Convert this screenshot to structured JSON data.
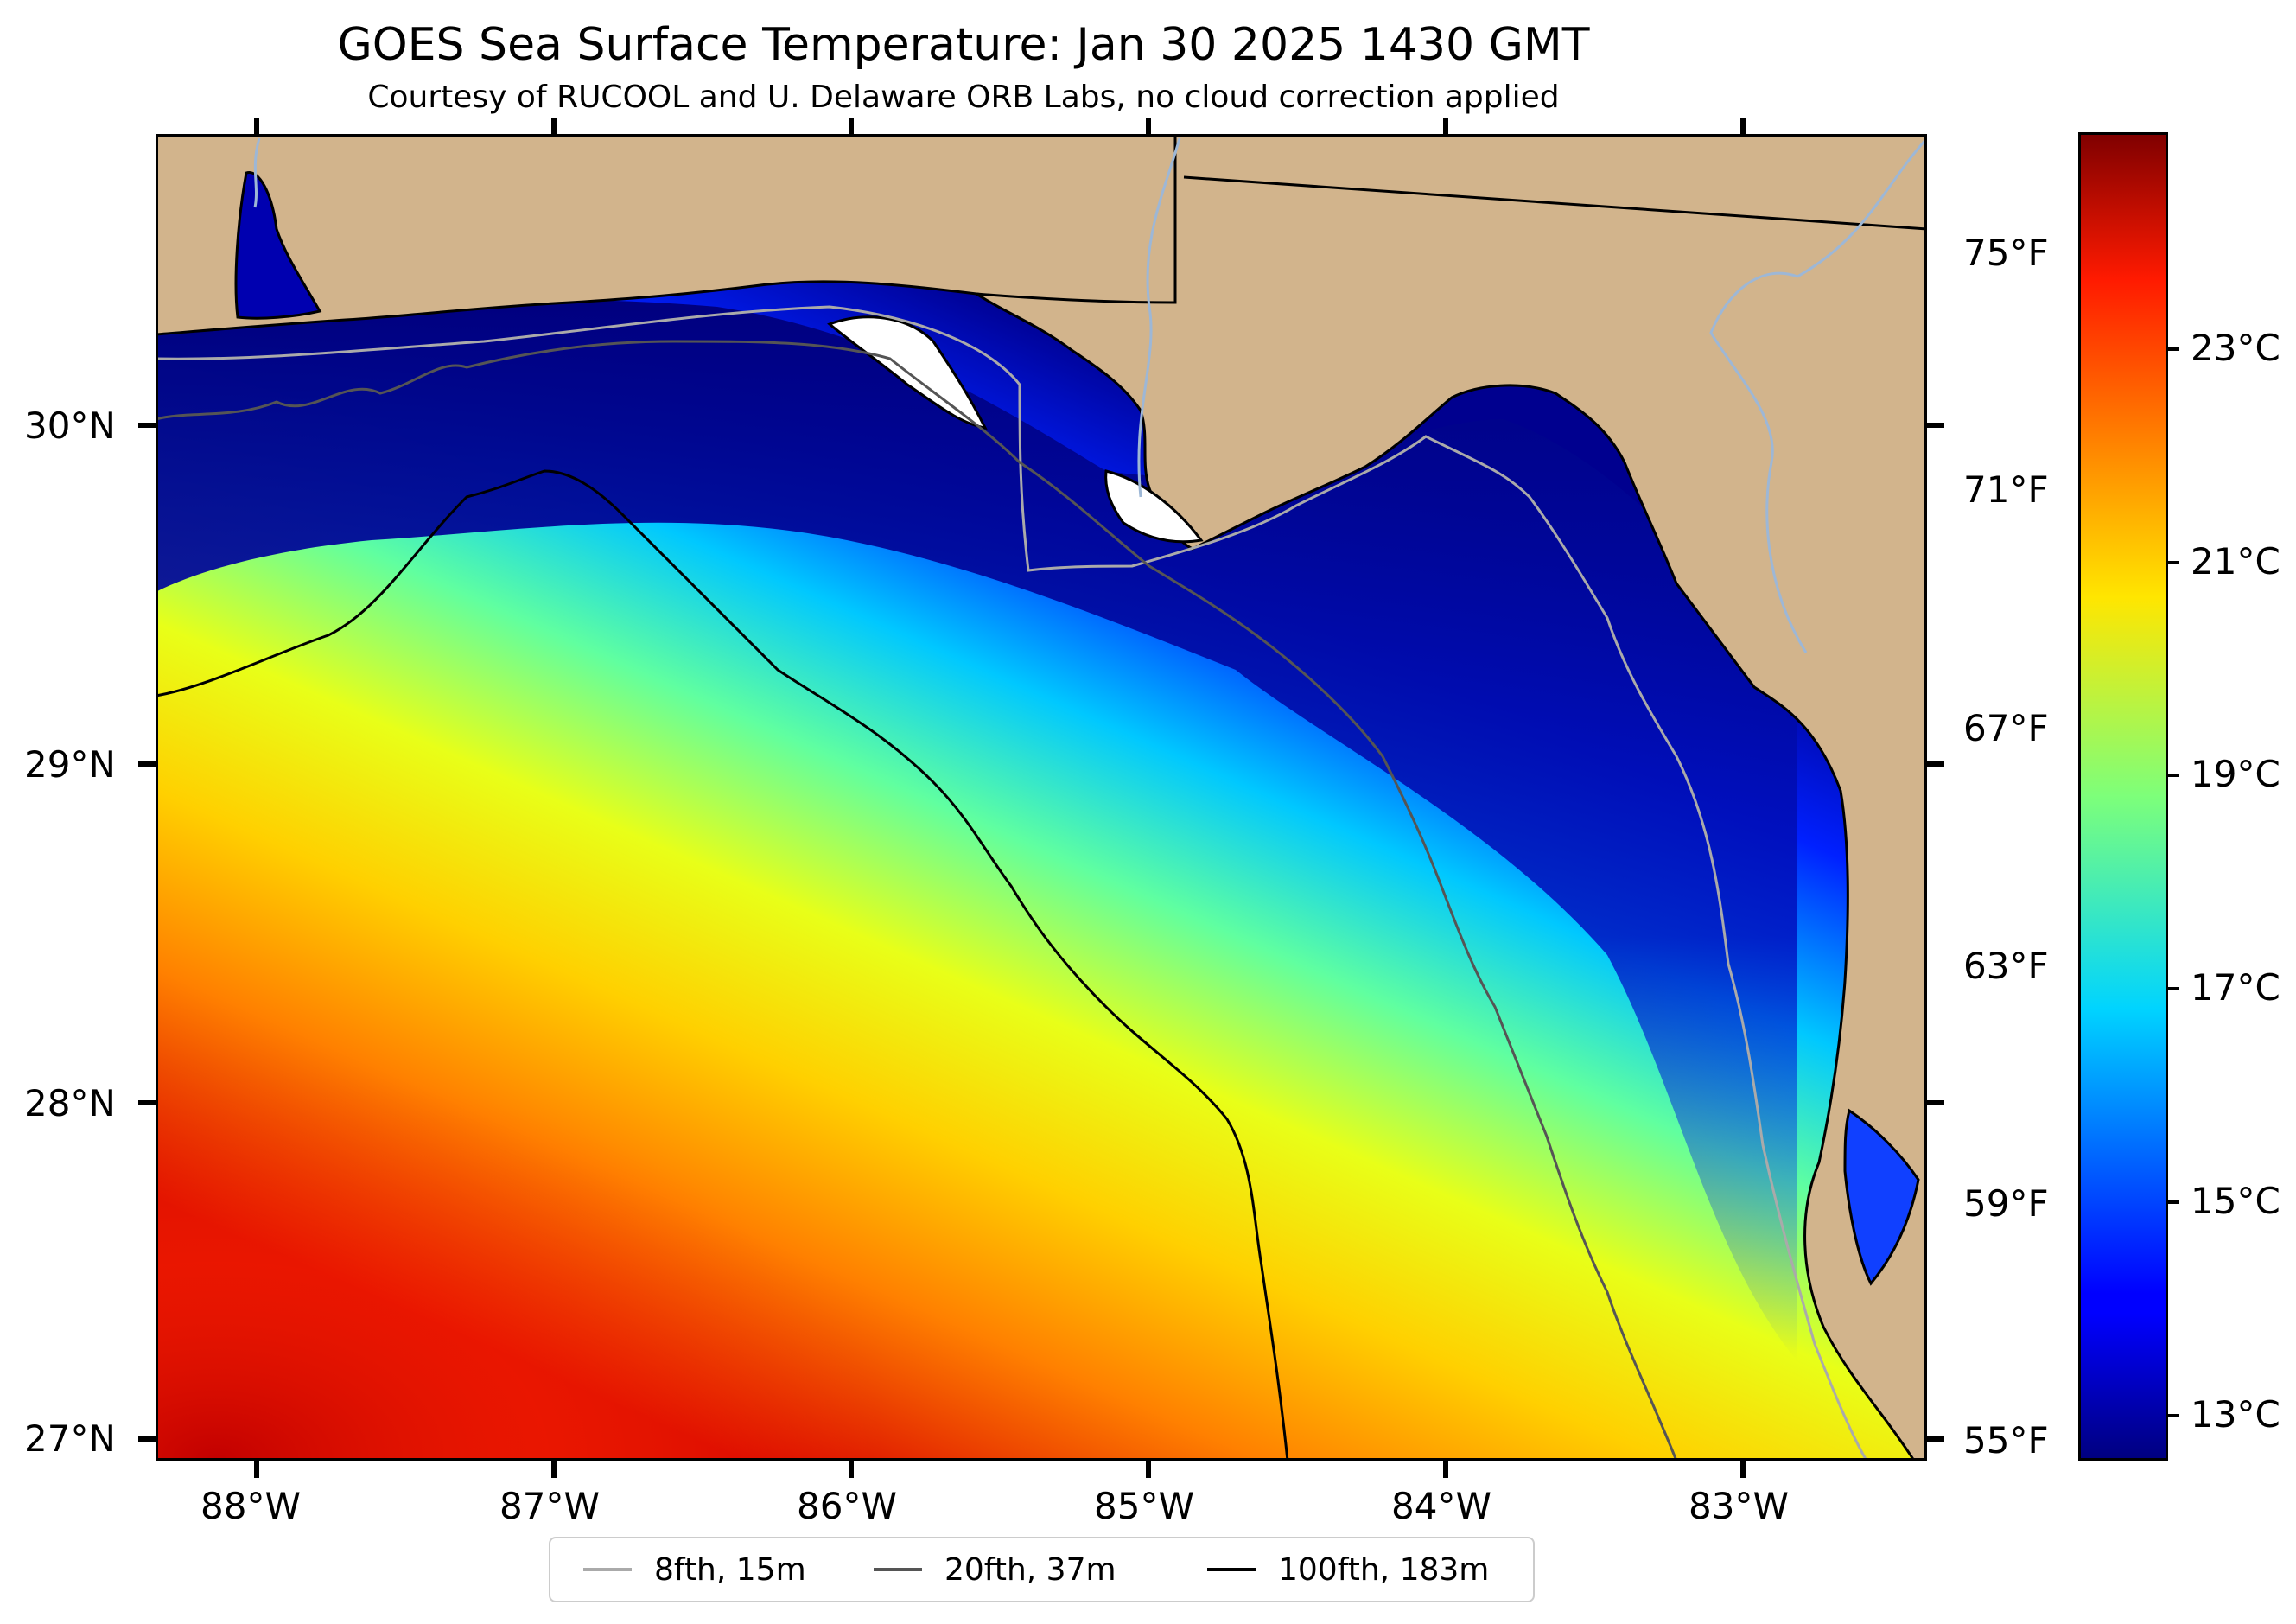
{
  "title": "GOES Sea Surface Temperature: Jan 30 2025 1430 GMT",
  "subtitle": "Courtesy of RUCOOL and U. Delaware ORB Labs, no cloud correction applied",
  "map": {
    "extent": {
      "lon_min": -88.33,
      "lon_max": -82.38,
      "lat_min": 26.93,
      "lat_max": 30.85
    },
    "lat_ticks": [
      "30°N",
      "29°N",
      "28°N",
      "27°N"
    ],
    "lon_ticks": [
      "88°W",
      "87°W",
      "86°W",
      "85°W",
      "84°W",
      "83°W"
    ],
    "land_color": "#d2b48c",
    "river_color": "#9db7d6",
    "colormap": "jet"
  },
  "colorbar": {
    "celsius_ticks": [
      "23°C",
      "21°C",
      "19°C",
      "17°C",
      "15°C",
      "13°C"
    ],
    "fahrenheit_ticks": [
      "75°F",
      "71°F",
      "67°F",
      "63°F",
      "59°F",
      "55°F"
    ],
    "range_c": [
      12.6,
      25.0
    ]
  },
  "legend": {
    "items": [
      {
        "label": "8fth, 15m",
        "color": "#aaaaaa"
      },
      {
        "label": "20fth, 37m",
        "color": "#555555"
      },
      {
        "label": "100fth, 183m",
        "color": "#000000"
      }
    ]
  }
}
